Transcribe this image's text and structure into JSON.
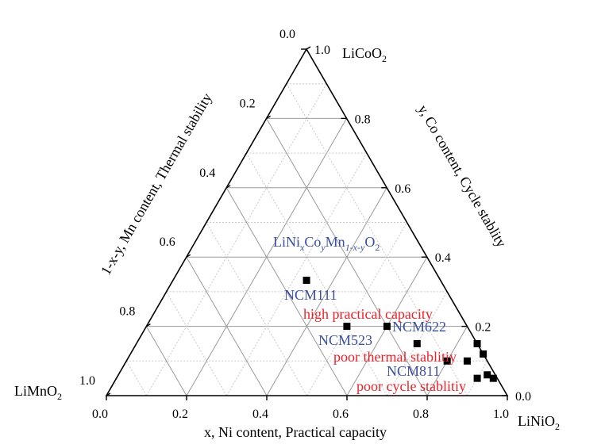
{
  "chart_data": {
    "type": "scatter",
    "ternary": true,
    "vertices": {
      "bottom_left": "LiMnO",
      "bottom_left_sub": "2",
      "bottom_right": "LiNiO",
      "bottom_right_sub": "2",
      "top": "LiCoO",
      "top_sub": "2"
    },
    "axes": {
      "bottom": {
        "label": "x, Ni content, Practical capacity",
        "ticks": [
          "0.0",
          "0.2",
          "0.4",
          "0.6",
          "0.8",
          "1.0"
        ]
      },
      "right": {
        "label": "y, Co content, Cycle stablity",
        "ticks": [
          "0.0",
          "0.2",
          "0.4",
          "0.6",
          "0.8",
          "1.0"
        ]
      },
      "left": {
        "label": "1-x-y, Mn content, Thermal stability",
        "ticks": [
          "0.0",
          "0.2",
          "0.4",
          "0.6",
          "0.8",
          "1.0"
        ]
      }
    },
    "grid": true,
    "formula": {
      "base": "LiNi",
      "x": "x",
      "co": "Co",
      "y": "y",
      "mn": "Mn",
      "mnsub": "1-x-y",
      "o": "O",
      "osub": "2"
    },
    "points": [
      {
        "ni": 0.333,
        "co": 0.333
      },
      {
        "ni": 0.5,
        "co": 0.2
      },
      {
        "ni": 0.6,
        "co": 0.2
      },
      {
        "ni": 0.7,
        "co": 0.15
      },
      {
        "ni": 0.8,
        "co": 0.1
      },
      {
        "ni": 0.85,
        "co": 0.1
      },
      {
        "ni": 0.85,
        "co": 0.15
      },
      {
        "ni": 0.88,
        "co": 0.12
      },
      {
        "ni": 0.9,
        "co": 0.05
      },
      {
        "ni": 0.92,
        "co": 0.06
      },
      {
        "ni": 0.94,
        "co": 0.05
      }
    ],
    "labels": {
      "ncm111": "NCM111",
      "ncm523": "NCM523",
      "ncm622": "NCM622",
      "ncm811": "NCM811",
      "high_capacity": "high practical capacity",
      "poor_thermal": "poor thermal stablitiy",
      "poor_cycle": "poor cycle stablitiy"
    }
  }
}
